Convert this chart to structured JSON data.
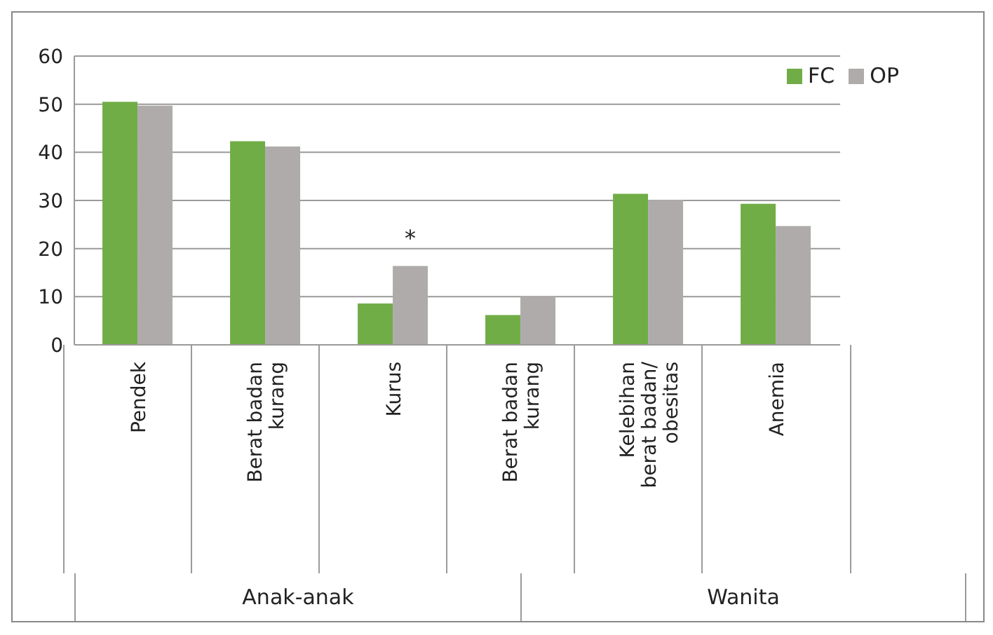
{
  "chart_data": {
    "type": "bar",
    "categories": [
      "Pendek",
      "Berat badan kurang",
      "Kurus",
      "Berat badan kurang",
      "Kelebihan berat badan/ obesitas",
      "Anemia"
    ],
    "series": [
      {
        "name": "FC",
        "color": "#70ad47",
        "values": [
          50.5,
          42.3,
          8.6,
          6.2,
          31.4,
          29.3
        ]
      },
      {
        "name": "OP",
        "color": "#afabab",
        "values": [
          49.7,
          41.2,
          16.4,
          10,
          30.1,
          24.7
        ],
        "value_labels": [
          null,
          null,
          "*",
          null,
          null,
          null
        ]
      }
    ],
    "ylim": [
      0,
      60
    ],
    "yticks": [
      0,
      10,
      20,
      30,
      40,
      50,
      60
    ],
    "grid": "y",
    "legend": "top right",
    "annotations": [
      "Anak-anak",
      "Wanita"
    ]
  }
}
